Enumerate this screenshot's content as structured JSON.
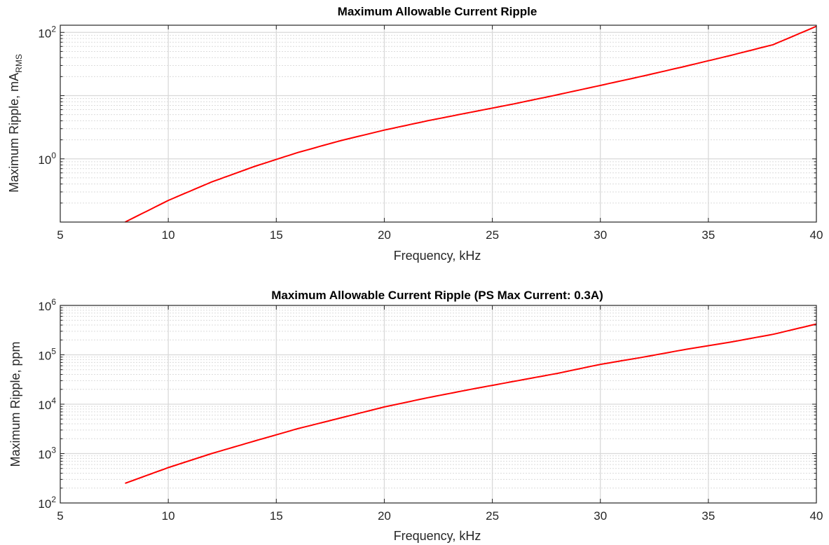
{
  "chart_data": [
    {
      "type": "line",
      "title": "Maximum Allowable Current Ripple",
      "xlabel": "Frequency, kHz",
      "ylabel": "Maximum Ripple, mA",
      "ylabel_subscript": "RMS",
      "xlim": [
        5,
        40
      ],
      "ylim": [
        0.1,
        130
      ],
      "yscale": "log",
      "grid": true,
      "x_ticks": [
        "5",
        "10",
        "15",
        "20",
        "25",
        "30",
        "35",
        "40"
      ],
      "y_ticks": [
        {
          "value": 1,
          "base": "10",
          "exp": "0"
        },
        {
          "value": 100,
          "base": "10",
          "exp": "2"
        }
      ],
      "series": [
        {
          "color": "#ff0000",
          "x": [
            8,
            10,
            12,
            14,
            16,
            18,
            20,
            22,
            24,
            26,
            28,
            30,
            32,
            34,
            36,
            38,
            40
          ],
          "y": [
            0.1,
            0.22,
            0.43,
            0.76,
            1.26,
            1.95,
            2.85,
            4.0,
            5.45,
            7.4,
            10.3,
            14.5,
            20.5,
            29.5,
            43,
            64,
            125
          ]
        }
      ]
    },
    {
      "type": "line",
      "title": "Maximum Allowable Current Ripple (PS Max Current: 0.3A)",
      "xlabel": "Frequency, kHz",
      "ylabel": "Maximum Ripple, ppm",
      "xlim": [
        5,
        40
      ],
      "ylim": [
        100,
        1000000
      ],
      "yscale": "log",
      "grid": true,
      "x_ticks": [
        "5",
        "10",
        "15",
        "20",
        "25",
        "30",
        "35",
        "40"
      ],
      "y_ticks": [
        {
          "value": 100,
          "base": "10",
          "exp": "2"
        },
        {
          "value": 1000,
          "base": "10",
          "exp": "3"
        },
        {
          "value": 10000,
          "base": "10",
          "exp": "4"
        },
        {
          "value": 100000,
          "base": "10",
          "exp": "5"
        },
        {
          "value": 1000000,
          "base": "10",
          "exp": "6"
        }
      ],
      "series": [
        {
          "color": "#ff0000",
          "x": [
            8,
            10,
            12,
            14,
            16,
            18,
            20,
            22,
            24,
            26,
            28,
            30,
            32,
            34,
            36,
            38,
            40
          ],
          "y": [
            250,
            520,
            1000,
            1800,
            3200,
            5300,
            8800,
            13500,
            20000,
            29000,
            42000,
            64000,
            90000,
            130000,
            180000,
            260000,
            420000
          ]
        }
      ]
    }
  ]
}
